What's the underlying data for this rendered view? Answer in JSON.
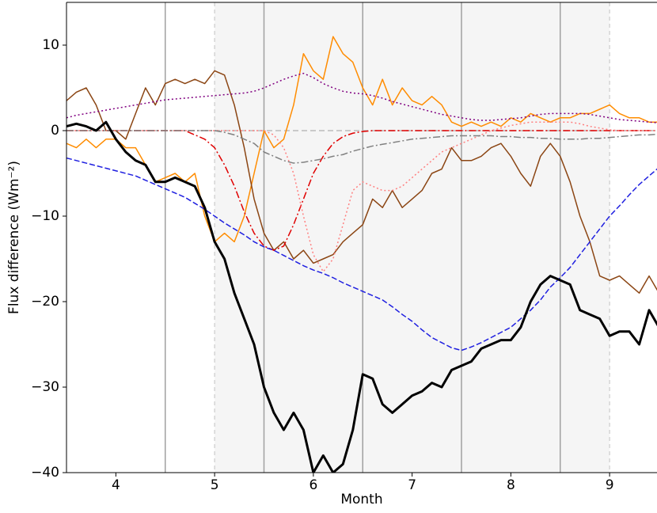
{
  "chart_data": {
    "type": "line",
    "xlabel": "Month",
    "ylabel": "Flux difference (Wm⁻²)",
    "xlim": [
      3.5,
      9.48
    ],
    "ylim": [
      -40,
      15
    ],
    "xticks": [
      4,
      5,
      6,
      7,
      8,
      9
    ],
    "yticks": [
      {
        "value": -40,
        "label": "−40"
      },
      {
        "value": -30,
        "label": "−30"
      },
      {
        "value": -20,
        "label": "−20"
      },
      {
        "value": -10,
        "label": "−10"
      },
      0,
      10
    ],
    "shade_span": [
      5,
      9
    ],
    "shade_color": "#f5f5f5",
    "vlines": [
      4.5,
      5.5,
      6.5,
      7.5,
      8.5
    ],
    "dashed_vlines": [
      5,
      9
    ],
    "hline": 0,
    "x": [
      3.5,
      3.6,
      3.7,
      3.8,
      3.9,
      4.0,
      4.1,
      4.2,
      4.3,
      4.4,
      4.5,
      4.6,
      4.7,
      4.8,
      4.9,
      5.0,
      5.1,
      5.2,
      5.3,
      5.4,
      5.5,
      5.6,
      5.7,
      5.8,
      5.9,
      6.0,
      6.1,
      6.2,
      6.3,
      6.4,
      6.5,
      6.6,
      6.7,
      6.8,
      6.9,
      7.0,
      7.1,
      7.2,
      7.3,
      7.4,
      7.5,
      7.6,
      7.7,
      7.8,
      7.9,
      8.0,
      8.1,
      8.2,
      8.3,
      8.4,
      8.5,
      8.6,
      8.7,
      8.8,
      8.9,
      9.0,
      9.1,
      9.2,
      9.3,
      9.4,
      9.5
    ],
    "series": [
      {
        "color": "#ff8c00",
        "style": "solid",
        "width": 1.5,
        "values": [
          -1.5,
          -2,
          -1,
          -2,
          -1,
          -1,
          -2,
          -2,
          -4,
          -6,
          -5.5,
          -5,
          -6,
          -5,
          -10,
          -13,
          -12,
          -13,
          -10,
          -5,
          0,
          -2,
          -1,
          3,
          9,
          7,
          6,
          11,
          9,
          8,
          5,
          3,
          6,
          3,
          5,
          3.5,
          3,
          4,
          3,
          1,
          0.5,
          1,
          0.5,
          1,
          0.5,
          1.5,
          1,
          2,
          1.5,
          1,
          1.5,
          1.5,
          2,
          2,
          2.5,
          3,
          2,
          1.5,
          1.5,
          1,
          1
        ]
      },
      {
        "color": "#8b4513",
        "style": "solid",
        "width": 1.5,
        "values": [
          3.5,
          4.5,
          5,
          3,
          0,
          0,
          -1,
          2,
          5,
          3,
          5.5,
          6,
          5.5,
          6,
          5.5,
          7,
          6.5,
          3,
          -2,
          -8,
          -12,
          -14,
          -13,
          -15,
          -14,
          -15.5,
          -15,
          -14.5,
          -13,
          -12,
          -11,
          -8,
          -9,
          -7,
          -9,
          -8,
          -7,
          -5,
          -4.5,
          -2,
          -3.5,
          -3.5,
          -3,
          -2,
          -1.5,
          -3,
          -5,
          -6.5,
          -3,
          -1.5,
          -3,
          -6,
          -10,
          -13,
          -17,
          -17.5,
          -17,
          -18,
          -19,
          -17,
          -19
        ]
      },
      {
        "color": "#800080",
        "style": "dotted",
        "width": 1.5,
        "values": [
          1.5,
          1.8,
          2.0,
          2.2,
          2.4,
          2.6,
          2.8,
          3.0,
          3.2,
          3.4,
          3.6,
          3.7,
          3.8,
          3.9,
          4.0,
          4.1,
          4.2,
          4.3,
          4.4,
          4.6,
          5.0,
          5.5,
          6.0,
          6.4,
          6.7,
          6.2,
          5.5,
          5.0,
          4.6,
          4.4,
          4.3,
          4.1,
          3.8,
          3.4,
          3.1,
          2.8,
          2.5,
          2.2,
          1.9,
          1.7,
          1.5,
          1.3,
          1.2,
          1.2,
          1.3,
          1.4,
          1.5,
          1.7,
          1.9,
          2.0,
          2.0,
          2.0,
          2.0,
          1.9,
          1.7,
          1.5,
          1.3,
          1.2,
          1.1,
          1.0,
          0.9
        ]
      },
      {
        "color": "#e00000",
        "style": "dashdot",
        "width": 1.5,
        "values": [
          0,
          0,
          0,
          0,
          0,
          0,
          0,
          0,
          0,
          0,
          0,
          0,
          0,
          -0.5,
          -1,
          -2,
          -4,
          -6.5,
          -9.5,
          -12,
          -13.5,
          -14,
          -13.5,
          -11,
          -8,
          -5,
          -3,
          -1.5,
          -0.7,
          -0.3,
          -0.1,
          0,
          0,
          0,
          0,
          0,
          0,
          0,
          0,
          0,
          0,
          0,
          0,
          0,
          0,
          0,
          0,
          0,
          0,
          0,
          0,
          0,
          0,
          0,
          0,
          0,
          0,
          0,
          0,
          0,
          0
        ]
      },
      {
        "color": "#ff8080",
        "style": "dotted",
        "width": 1.5,
        "values": [
          0,
          0,
          0,
          0,
          0,
          0,
          0,
          0,
          0,
          0,
          0,
          0,
          0,
          0,
          0,
          0,
          0,
          0,
          0,
          0,
          0,
          -0.5,
          -2,
          -5,
          -10,
          -14.5,
          -16.5,
          -15,
          -11,
          -7,
          -6,
          -6.5,
          -7,
          -7,
          -6.5,
          -5.5,
          -4.5,
          -3.5,
          -2.5,
          -2,
          -1.5,
          -1,
          -0.5,
          0,
          0.3,
          0.6,
          0.8,
          1.0,
          1.0,
          1.0,
          1.0,
          1.0,
          0.8,
          0.5,
          0.3,
          0.1,
          0,
          0,
          0,
          0,
          0
        ]
      },
      {
        "color": "#808080",
        "style": "dashdot",
        "width": 1.5,
        "values": [
          0,
          0,
          0,
          0,
          0,
          0,
          0,
          0,
          0,
          0,
          0,
          0,
          0,
          0,
          0,
          0,
          -0.2,
          -0.5,
          -1,
          -1.5,
          -2.5,
          -3,
          -3.5,
          -3.8,
          -3.7,
          -3.5,
          -3.3,
          -3,
          -2.8,
          -2.4,
          -2.1,
          -1.8,
          -1.6,
          -1.4,
          -1.2,
          -1,
          -0.9,
          -0.8,
          -0.7,
          -0.6,
          -0.6,
          -0.6,
          -0.6,
          -0.6,
          -0.7,
          -0.7,
          -0.8,
          -0.8,
          -0.9,
          -0.9,
          -1,
          -1,
          -1,
          -0.9,
          -0.9,
          -0.8,
          -0.7,
          -0.6,
          -0.5,
          -0.5,
          -0.4
        ]
      },
      {
        "color": "#1f1fe0",
        "style": "dashed",
        "width": 1.5,
        "values": [
          -3.2,
          -3.5,
          -3.8,
          -4.1,
          -4.4,
          -4.7,
          -5.0,
          -5.3,
          -5.8,
          -6.3,
          -6.8,
          -7.3,
          -7.8,
          -8.5,
          -9.2,
          -10,
          -10.8,
          -11.5,
          -12.2,
          -13,
          -13.6,
          -14,
          -14.6,
          -15.2,
          -15.8,
          -16.3,
          -16.7,
          -17.2,
          -17.8,
          -18.3,
          -18.8,
          -19.3,
          -19.8,
          -20.6,
          -21.5,
          -22.3,
          -23.3,
          -24.2,
          -24.8,
          -25.4,
          -25.7,
          -25.3,
          -24.8,
          -24.2,
          -23.6,
          -23,
          -22,
          -21,
          -19.8,
          -18.3,
          -17.2,
          -16,
          -14.5,
          -13,
          -11.5,
          -10,
          -8.8,
          -7.5,
          -6.3,
          -5.3,
          -4.3
        ]
      },
      {
        "color": "#000000",
        "style": "solid",
        "width": 3,
        "values": [
          0.5,
          0.8,
          0.5,
          0,
          1,
          -1,
          -2.5,
          -3.5,
          -4,
          -6,
          -6,
          -5.5,
          -6,
          -6.5,
          -9,
          -13,
          -15,
          -19,
          -22,
          -25,
          -30,
          -33,
          -35,
          -33,
          -35,
          -40,
          -38,
          -40,
          -39,
          -35,
          -28.5,
          -29,
          -32,
          -33,
          -32,
          -31,
          -30.5,
          -29.5,
          -30,
          -28,
          -27.5,
          -27,
          -25.5,
          -25,
          -24.5,
          -24.5,
          -23,
          -20,
          -18,
          -17,
          -17.5,
          -18,
          -21,
          -21.5,
          -22,
          -24,
          -23.5,
          -23.5,
          -25,
          -21,
          -23
        ]
      }
    ]
  }
}
